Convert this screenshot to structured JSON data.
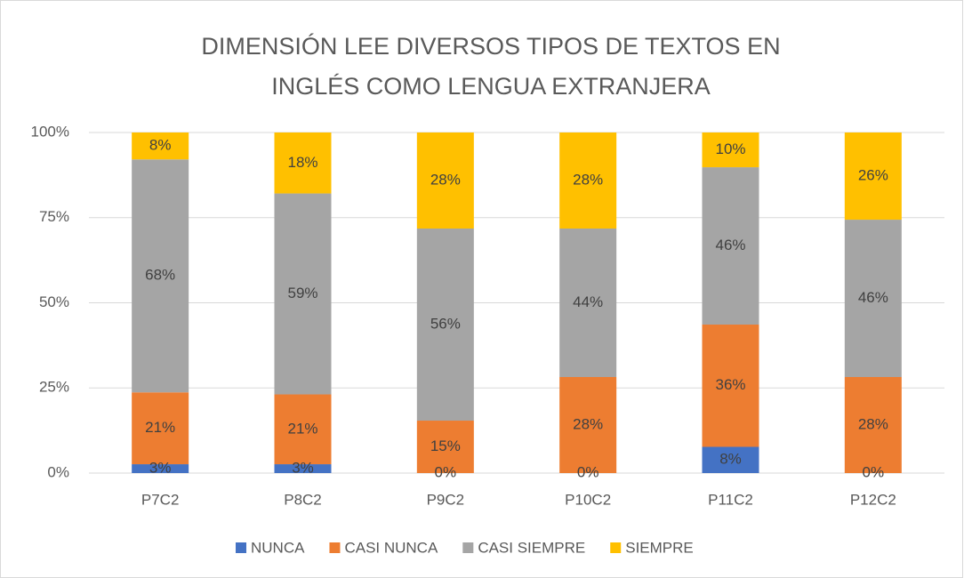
{
  "chart_data": {
    "type": "stacked_bar",
    "title": "DIMENSIÓN LEE DIVERSOS TIPOS DE TEXTOS EN INGLÉS COMO LENGUA EXTRANJERA",
    "categories": [
      "P7C2",
      "P8C2",
      "P9C2",
      "P10C2",
      "P11C2",
      "P12C2"
    ],
    "series": [
      {
        "name": "NUNCA",
        "color": "#4472c4",
        "values": [
          2.6,
          2.6,
          0,
          0,
          7.7,
          0
        ],
        "value_labels": [
          "3%",
          "3%",
          "0%",
          "0%",
          "8%",
          "0%"
        ]
      },
      {
        "name": "CASI NUNCA",
        "color": "#ed7d31",
        "values": [
          21.1,
          20.5,
          15.4,
          28.2,
          35.9,
          28.2
        ],
        "value_labels": [
          "21%",
          "21%",
          "15%",
          "28%",
          "36%",
          "28%"
        ]
      },
      {
        "name": "CASI SIEMPRE",
        "color": "#a5a5a5",
        "values": [
          68.4,
          59.0,
          56.4,
          43.6,
          46.2,
          46.2
        ],
        "value_labels": [
          "68%",
          "59%",
          "56%",
          "44%",
          "46%",
          "46%"
        ]
      },
      {
        "name": "SIEMPRE",
        "color": "#ffc000",
        "values": [
          7.9,
          17.9,
          28.2,
          28.2,
          10.2,
          25.6
        ],
        "value_labels": [
          "8%",
          "18%",
          "28%",
          "28%",
          "10%",
          "26%"
        ]
      }
    ],
    "ylim": [
      0,
      100
    ],
    "yticks": [
      {
        "value": 0,
        "label": "0%"
      },
      {
        "value": 25,
        "label": "25%"
      },
      {
        "value": 50,
        "label": "50%"
      },
      {
        "value": 75,
        "label": "75%"
      },
      {
        "value": 100,
        "label": "100%"
      }
    ],
    "grid": true,
    "legend": "bottom"
  }
}
